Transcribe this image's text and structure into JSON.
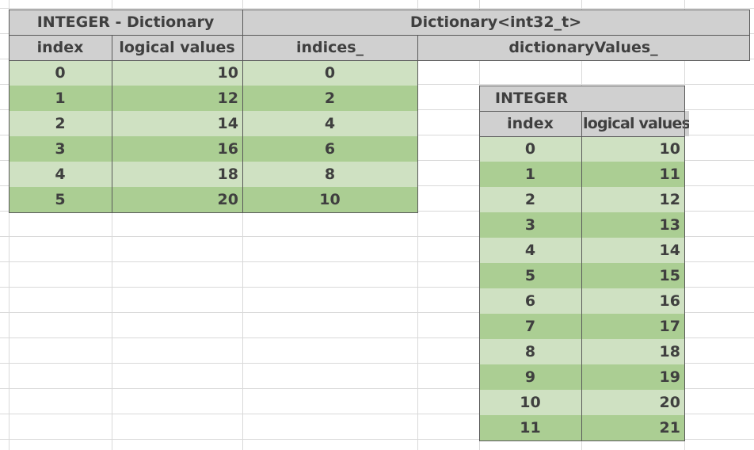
{
  "left_table": {
    "title": "INTEGER - Dictionary",
    "col_index": "index",
    "col_values": "logical values",
    "rows": [
      {
        "index": "0",
        "value": "10"
      },
      {
        "index": "1",
        "value": "12"
      },
      {
        "index": "2",
        "value": "14"
      },
      {
        "index": "3",
        "value": "16"
      },
      {
        "index": "4",
        "value": "18"
      },
      {
        "index": "5",
        "value": "20"
      }
    ]
  },
  "dictionary": {
    "title": "Dictionary<int32_t>",
    "indices_header": "indices_",
    "values_header": "dictionaryValues_",
    "indices": [
      "0",
      "2",
      "4",
      "6",
      "8",
      "10"
    ]
  },
  "right_table": {
    "title": "INTEGER",
    "col_index": "index",
    "col_values": "logical values",
    "rows": [
      {
        "index": "0",
        "value": "10"
      },
      {
        "index": "1",
        "value": "11"
      },
      {
        "index": "2",
        "value": "12"
      },
      {
        "index": "3",
        "value": "13"
      },
      {
        "index": "4",
        "value": "14"
      },
      {
        "index": "5",
        "value": "15"
      },
      {
        "index": "6",
        "value": "16"
      },
      {
        "index": "7",
        "value": "17"
      },
      {
        "index": "8",
        "value": "18"
      },
      {
        "index": "9",
        "value": "19"
      },
      {
        "index": "10",
        "value": "20"
      },
      {
        "index": "11",
        "value": "21"
      }
    ]
  },
  "colors": {
    "header_gray": "#d0d0d0",
    "row_light_green": "#cfe1c2",
    "row_dark_green": "#abce93",
    "gridline": "#d9d9d9"
  }
}
